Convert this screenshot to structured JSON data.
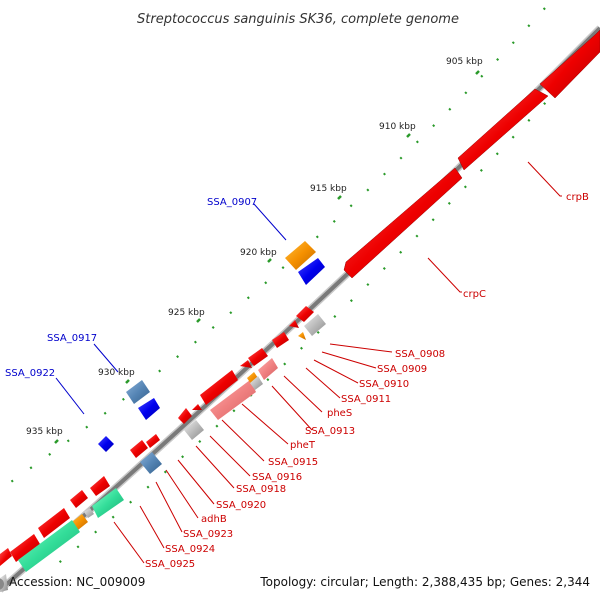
{
  "title": "Streptococcus sanguinis SK36, complete genome",
  "footer": {
    "accession": "Accession: NC_009009",
    "summary": "Topology: circular; Length: 2,388,435 bp; Genes: 2,344"
  },
  "ticks": [
    "905 kbp",
    "910 kbp",
    "915 kbp",
    "920 kbp",
    "925 kbp",
    "930 kbp",
    "935 kbp"
  ],
  "gene_labels": {
    "crpB": "crpB",
    "crpC": "crpC",
    "SSA_0907": "SSA_0907",
    "SSA_0917": "SSA_0917",
    "SSA_0922": "SSA_0922",
    "SSA_0908": "SSA_0908",
    "SSA_0909": "SSA_0909",
    "SSA_0910": "SSA_0910",
    "SSA_0911": "SSA_0911",
    "pheS": "pheS",
    "SSA_0913": "SSA_0913",
    "pheT": "pheT",
    "SSA_0915": "SSA_0915",
    "SSA_0916": "SSA_0916",
    "SSA_0918": "SSA_0918",
    "SSA_0920": "SSA_0920",
    "adhB": "adhB",
    "SSA_0923": "SSA_0923",
    "SSA_0924": "SSA_0924",
    "SSA_0925": "SSA_0925"
  },
  "colors": {
    "backbone": "#888888",
    "gene_red": "#ee0000",
    "gene_pink": "#f08080",
    "gene_gray": "#bbbbbb",
    "gene_orange": "#f59000",
    "gene_blue": "#0000ee",
    "gene_steel": "#5585b5",
    "gene_green": "#33dd99",
    "tick_green": "#2a9a2a",
    "label_red": "#cc0000",
    "label_blue": "#0000cc"
  }
}
